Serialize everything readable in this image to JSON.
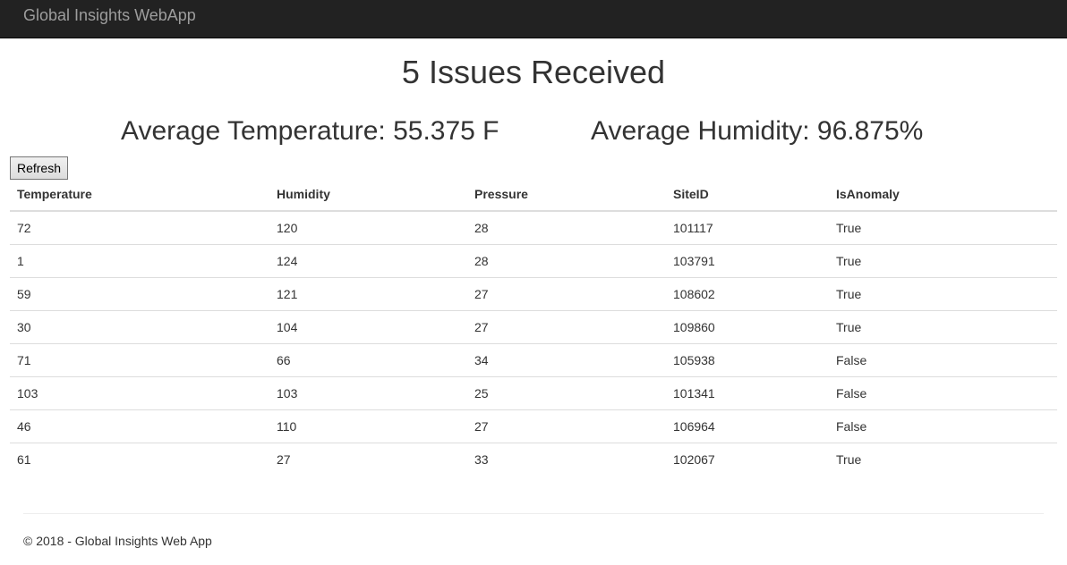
{
  "navbar": {
    "brand": "Global Insights WebApp"
  },
  "main": {
    "title": "5 Issues Received",
    "avg_temperature": "Average Temperature: 55.375 F",
    "avg_humidity": "Average Humidity: 96.875%",
    "refresh_label": "Refresh"
  },
  "table": {
    "headers": [
      "Temperature",
      "Humidity",
      "Pressure",
      "SiteID",
      "IsAnomaly"
    ],
    "rows": [
      [
        "72",
        "120",
        "28",
        "101117",
        "True"
      ],
      [
        "1",
        "124",
        "28",
        "103791",
        "True"
      ],
      [
        "59",
        "121",
        "27",
        "108602",
        "True"
      ],
      [
        "30",
        "104",
        "27",
        "109860",
        "True"
      ],
      [
        "71",
        "66",
        "34",
        "105938",
        "False"
      ],
      [
        "103",
        "103",
        "25",
        "101341",
        "False"
      ],
      [
        "46",
        "110",
        "27",
        "106964",
        "False"
      ],
      [
        "61",
        "27",
        "33",
        "102067",
        "True"
      ]
    ]
  },
  "footer": {
    "text": "© 2018 - Global Insights Web App"
  },
  "colors": {
    "navbar_bg": "#222222",
    "brand_text": "#9d9d9d",
    "body_text": "#333333",
    "table_border": "#dddddd"
  }
}
